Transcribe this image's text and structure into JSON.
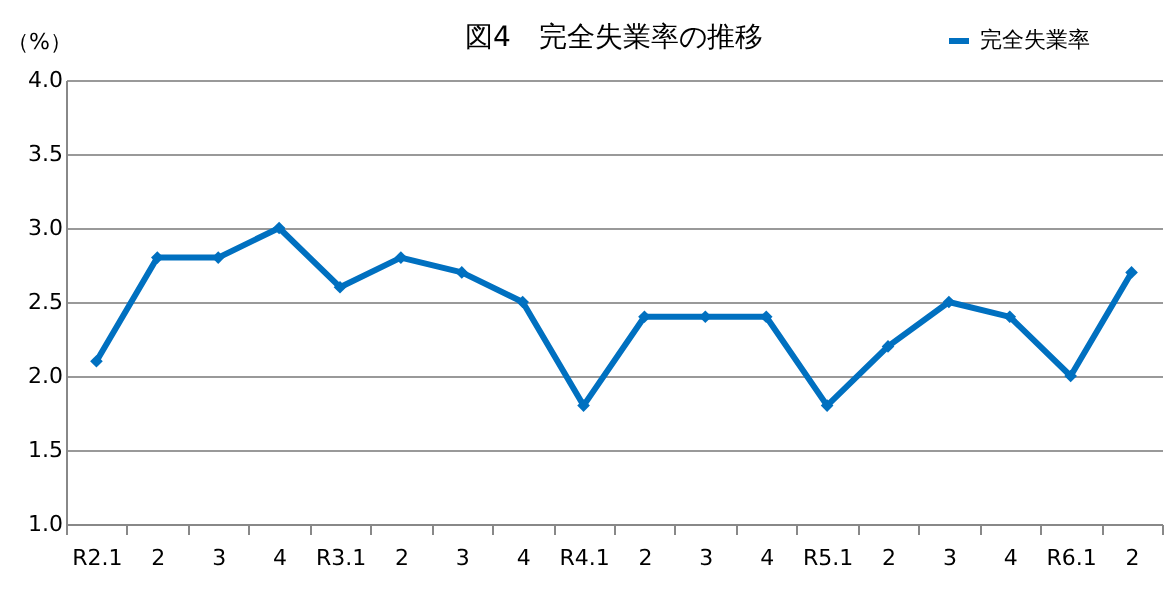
{
  "chart_data": {
    "type": "line",
    "title": "図4　完全失業率の推移",
    "ylabel": "（%）",
    "categories": [
      "R2.1",
      "2",
      "3",
      "4",
      "R3.1",
      "2",
      "3",
      "4",
      "R4.1",
      "2",
      "3",
      "4",
      "R5.1",
      "2",
      "3",
      "4",
      "R6.1",
      "2"
    ],
    "series": [
      {
        "name": "完全失業率",
        "color": "#0070c0",
        "values": [
          2.1,
          2.8,
          2.8,
          3.0,
          2.6,
          2.8,
          2.7,
          2.5,
          1.8,
          2.4,
          2.4,
          2.4,
          1.8,
          2.2,
          2.5,
          2.4,
          2.0,
          2.7
        ]
      }
    ],
    "ylim": [
      1.0,
      4.0
    ],
    "yticks": [
      {
        "value": 1.0,
        "label": "1.0"
      },
      {
        "value": 1.5,
        "label": "1.5"
      },
      {
        "value": 2.0,
        "label": "2.0"
      },
      {
        "value": 2.5,
        "label": "2.5"
      },
      {
        "value": 3.0,
        "label": "3.0"
      },
      {
        "value": 3.5,
        "label": "3.5"
      },
      {
        "value": 4.0,
        "label": "4.0"
      }
    ],
    "grid": "y",
    "legend": "top right",
    "marker": "diamond",
    "line_style": "solid"
  }
}
